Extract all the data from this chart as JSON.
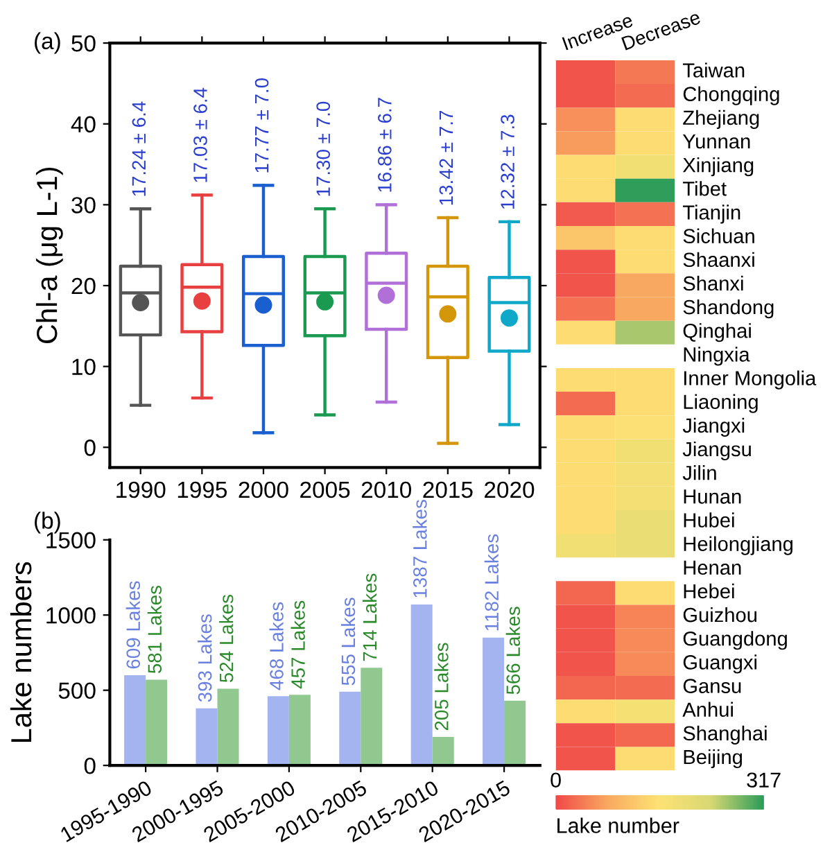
{
  "chart_data": [
    {
      "type": "box",
      "ylabel": "Chl-a (μg L-1)",
      "categories": [
        "1990",
        "1995",
        "2000",
        "2005",
        "2010",
        "2015",
        "2020"
      ],
      "ylim": [
        -2.5,
        50
      ],
      "yticks": [
        0,
        10,
        20,
        30,
        40,
        50
      ],
      "grid": false,
      "legend": false,
      "colors": [
        "#555555",
        "#e84040",
        "#1a5fd0",
        "#1a9a50",
        "#b070d8",
        "#d4960a",
        "#10a8c8"
      ],
      "boxes": [
        {
          "low": 5.2,
          "q1": 13.9,
          "median": 19.1,
          "q3": 22.4,
          "high": 29.5,
          "mean": 17.9
        },
        {
          "low": 6.1,
          "q1": 14.3,
          "median": 19.8,
          "q3": 22.6,
          "high": 31.2,
          "mean": 18.1
        },
        {
          "low": 1.8,
          "q1": 12.6,
          "median": 19.0,
          "q3": 23.6,
          "high": 32.4,
          "mean": 17.6
        },
        {
          "low": 4.0,
          "q1": 13.8,
          "median": 19.1,
          "q3": 23.6,
          "high": 29.5,
          "mean": 18.0
        },
        {
          "low": 5.6,
          "q1": 14.6,
          "median": 20.3,
          "q3": 24.0,
          "high": 30.0,
          "mean": 18.8
        },
        {
          "low": 0.5,
          "q1": 11.1,
          "median": 18.6,
          "q3": 22.4,
          "high": 28.4,
          "mean": 16.5
        },
        {
          "low": 2.8,
          "q1": 11.9,
          "median": 17.9,
          "q3": 21.0,
          "high": 27.9,
          "mean": 16.0
        }
      ],
      "annotations": [
        "(a)",
        "17.24 ± 6.4",
        "17.03 ± 6.4",
        "17.77 ± 7.0",
        "17.30 ± 7.0",
        "16.86 ± 6.7",
        "13.42 ± 7.7",
        "12.32 ± 7.3"
      ]
    },
    {
      "type": "bar",
      "ylabel": "Lake numbers",
      "categories": [
        "1995-1990",
        "2000-1995",
        "2005-2000",
        "2010-2005",
        "2015-2010",
        "2020-2015"
      ],
      "ylim": [
        0,
        1500
      ],
      "yticks": [
        0,
        500,
        1000,
        1500
      ],
      "grid": false,
      "legend": false,
      "series": [
        {
          "color": "#a4b4f0",
          "values": [
            600,
            380,
            460,
            490,
            1070,
            850
          ]
        },
        {
          "color": "#90c890",
          "values": [
            570,
            510,
            470,
            650,
            190,
            430
          ]
        }
      ],
      "annotations": [
        "(b)",
        "609 Lakes",
        "393 Lakes",
        "468 Lakes",
        "555 Lakes",
        "1387 Lakes",
        "1182 Lakes",
        "581 Lakes",
        "524 Lakes",
        "457 Lakes",
        "714 Lakes",
        "205 Lakes",
        "566 Lakes"
      ]
    },
    {
      "type": "heatmap",
      "categories": [
        "Increase",
        "Decrease"
      ],
      "y_categories": [
        "Taiwan",
        "Chongqing",
        "Zhejiang",
        "Yunnan",
        "Xinjiang",
        "Tibet",
        "Tianjin",
        "Sichuan",
        "Shaanxi",
        "Shanxi",
        "Shandong",
        "Qinghai",
        "Ningxia",
        "Inner Mongolia",
        "Liaoning",
        "Jiangxi",
        "Jiangsu",
        "Jilin",
        "Hunan",
        "Hubei",
        "Heilongjiang",
        "Henan",
        "Hebei",
        "Guizhou",
        "Guangdong",
        "Guangxi",
        "Gansu",
        "Anhui",
        "Shanghai",
        "Beijing"
      ],
      "cells": [
        [
          10,
          40
        ],
        [
          10,
          30
        ],
        [
          60,
          150
        ],
        [
          70,
          150
        ],
        [
          150,
          185
        ],
        [
          150,
          317
        ],
        [
          15,
          35
        ],
        [
          120,
          150
        ],
        [
          10,
          150
        ],
        [
          10,
          80
        ],
        [
          35,
          80
        ],
        [
          150,
          260
        ],
        [
          null,
          null
        ],
        [
          150,
          150
        ],
        [
          30,
          150
        ],
        [
          150,
          155
        ],
        [
          150,
          185
        ],
        [
          150,
          180
        ],
        [
          150,
          180
        ],
        [
          150,
          200
        ],
        [
          185,
          200
        ],
        [
          null,
          null
        ],
        [
          25,
          150
        ],
        [
          10,
          50
        ],
        [
          10,
          55
        ],
        [
          10,
          55
        ],
        [
          25,
          30
        ],
        [
          150,
          175
        ],
        [
          10,
          25
        ],
        [
          10,
          150
        ]
      ],
      "clim": [
        0,
        317
      ],
      "cticks": [
        0,
        317
      ],
      "clabel": "Lake number"
    }
  ]
}
